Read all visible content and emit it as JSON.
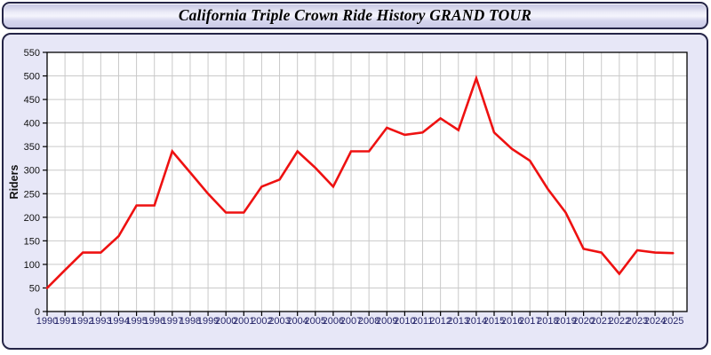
{
  "window": {
    "title": "California Triple Crown Ride History GRAND TOUR"
  },
  "colors": {
    "line": "#ee1111",
    "panel_bg": "#e7e7f7",
    "panel_border": "#252547",
    "plot_bg": "#ffffff",
    "grid": "#c9c9c9",
    "axis_frame": "#000000",
    "tick": "#000000",
    "x_tick_label": "#26266a",
    "y_tick_label": "#111111",
    "y_axis_title": "#111111",
    "title_text": "#000000"
  },
  "chart_data": {
    "type": "line",
    "title": "California Triple Crown Ride History GRAND TOUR",
    "xlabel": "",
    "ylabel": "Riders",
    "x": [
      1990,
      1991,
      1992,
      1993,
      1994,
      1995,
      1996,
      1997,
      1998,
      1999,
      2000,
      2001,
      2002,
      2003,
      2004,
      2005,
      2006,
      2007,
      2008,
      2009,
      2010,
      2011,
      2012,
      2013,
      2014,
      2015,
      2016,
      2017,
      2018,
      2019,
      2020,
      2021,
      2022,
      2023,
      2024,
      2025
    ],
    "series": [
      {
        "name": "Riders",
        "values": [
          50,
          88,
          125,
          125,
          160,
          225,
          225,
          340,
          295,
          250,
          210,
          210,
          265,
          280,
          340,
          305,
          265,
          340,
          340,
          390,
          375,
          380,
          410,
          385,
          495,
          380,
          345,
          320,
          260,
          210,
          133,
          125,
          80,
          130,
          125,
          124
        ]
      }
    ],
    "ylim": [
      0,
      550
    ],
    "ytick_step": 50,
    "grid": true,
    "legend_position": "none"
  }
}
